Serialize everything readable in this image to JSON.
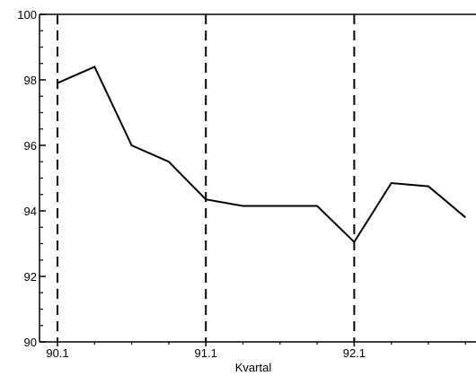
{
  "chart_data": {
    "type": "line",
    "title": "",
    "xlabel": "Kvartal",
    "ylabel": "",
    "ylim": [
      90,
      100
    ],
    "yticks": [
      90,
      92,
      94,
      96,
      98,
      100
    ],
    "xticks": [
      {
        "index": 0,
        "label": "90.1"
      },
      {
        "index": 4,
        "label": "91.1"
      },
      {
        "index": 8,
        "label": "92.1"
      }
    ],
    "vertical_dashed_at": [
      0,
      4,
      8
    ],
    "series": [
      {
        "x": [
          0,
          1,
          2,
          3,
          4,
          5,
          6,
          7,
          8,
          9,
          10,
          11
        ],
        "values": [
          97.9,
          98.4,
          96.0,
          95.5,
          94.35,
          94.15,
          94.15,
          94.15,
          93.05,
          94.85,
          94.75,
          93.8
        ]
      }
    ],
    "grid": false,
    "line_color": "#000000"
  }
}
